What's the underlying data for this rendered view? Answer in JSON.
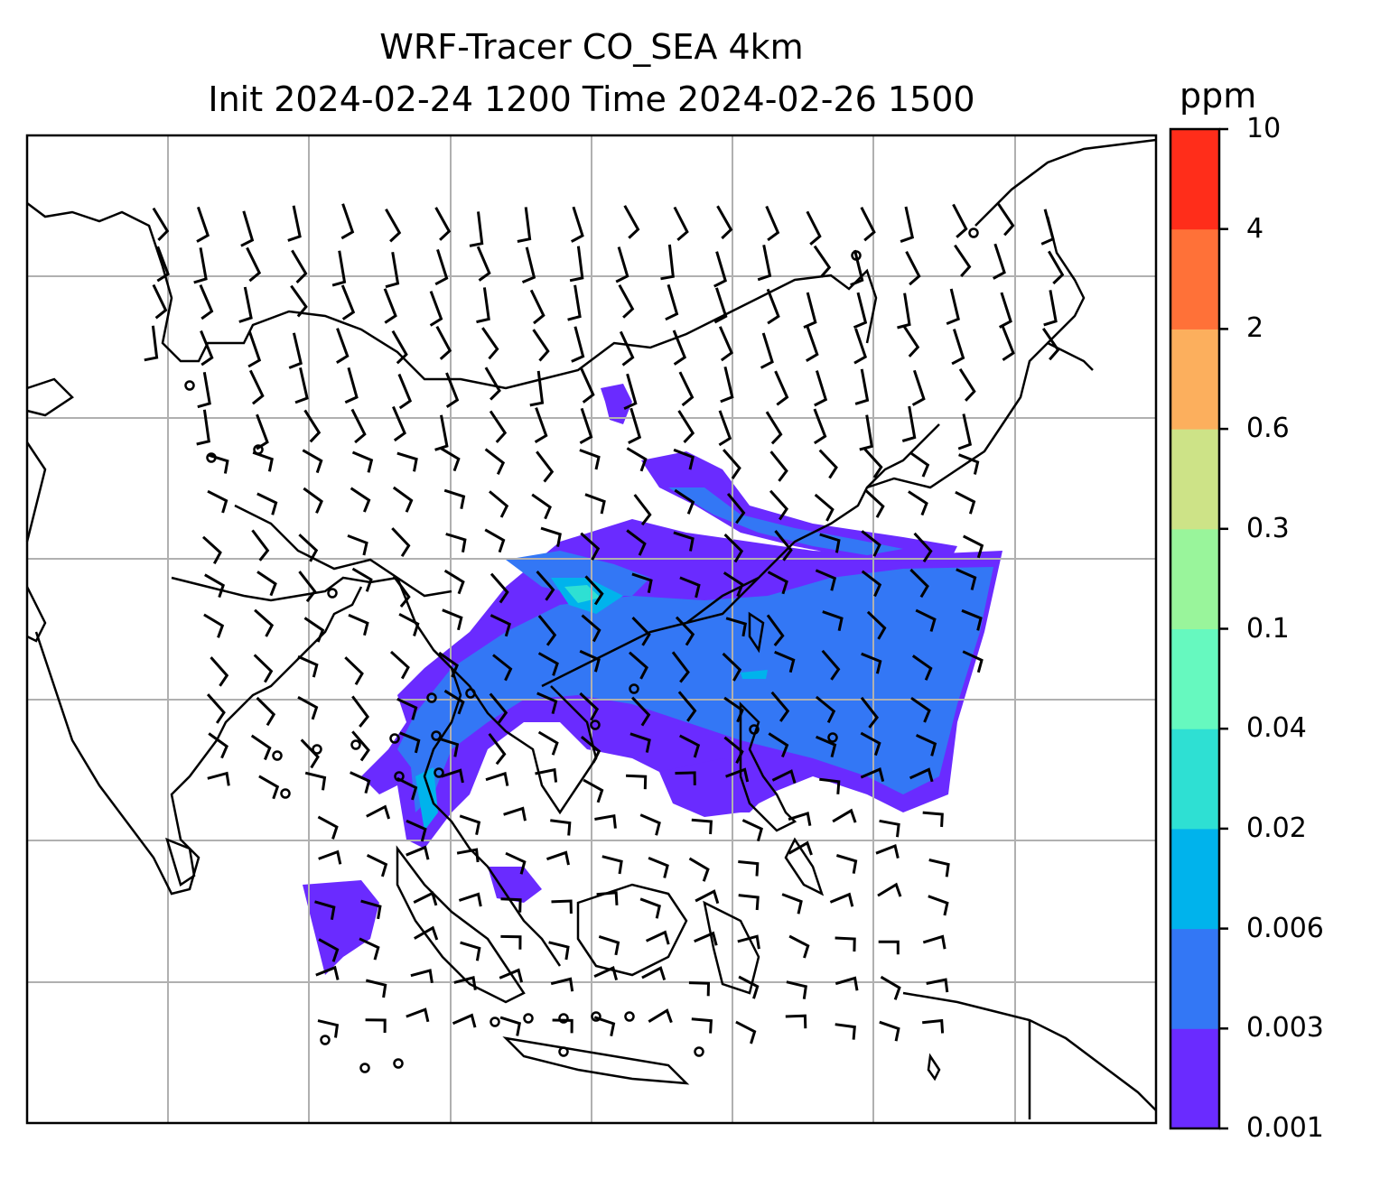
{
  "title": {
    "line1": "WRF-Tracer CO_SEA 4km",
    "line2": "Init 2024-02-24 1200 Time 2024-02-26 1500"
  },
  "colorbar": {
    "unit": "ppm",
    "levels": [
      "0.001",
      "0.003",
      "0.006",
      "0.02",
      "0.04",
      "0.1",
      "0.3",
      "0.6",
      "2",
      "4",
      "10"
    ],
    "colors": [
      "#6a2bff",
      "#3377f5",
      "#00b3ec",
      "#2ee0d3",
      "#66f9bf",
      "#99f59b",
      "#cde387",
      "#fcaf5d",
      "#ff7138",
      "#ff2d1a"
    ]
  },
  "map": {
    "coastline_color": "#000000",
    "gridline_color": "#b0b0b0",
    "wind_barb_color": "#000000"
  }
}
